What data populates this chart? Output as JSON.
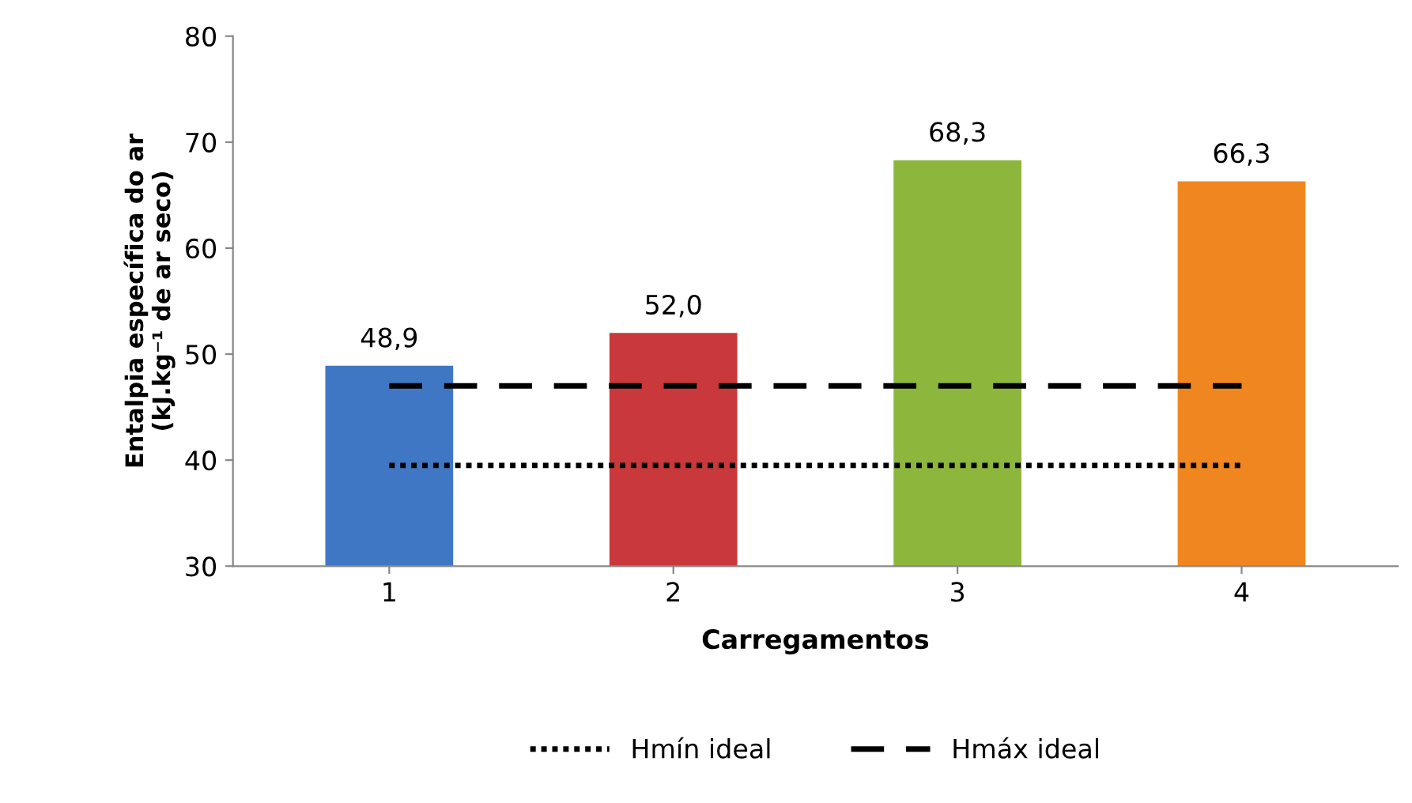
{
  "chart_data": {
    "type": "bar",
    "xlabel": "Carregamentos",
    "ylabel": "Entalpia específica do ar\n(kJ.kg⁻¹ de ar seco)",
    "categories": [
      "1",
      "2",
      "3",
      "4"
    ],
    "series": [
      {
        "colors": [
          "#3f77c4",
          "#c9383a",
          "#8db63c",
          "#f0861f"
        ],
        "values": [
          48.9,
          52.0,
          68.3,
          66.3
        ],
        "value_labels": [
          "48,9",
          "52,0",
          "68,3",
          "66,3"
        ]
      },
      {
        "type": "line",
        "name": "Hmín ideal",
        "color": "#000000",
        "line_style": "dotted",
        "values": [
          39.5,
          39.5,
          39.5,
          39.5
        ]
      },
      {
        "type": "line",
        "name": "Hmáx ideal",
        "color": "#000000",
        "line_style": "dashed",
        "values": [
          47,
          47,
          47,
          47
        ]
      }
    ],
    "ylim": [
      30,
      80
    ],
    "yticks": [
      30,
      40,
      50,
      60,
      70,
      80
    ],
    "grid": false,
    "legend": "bottom",
    "marker": "none"
  }
}
